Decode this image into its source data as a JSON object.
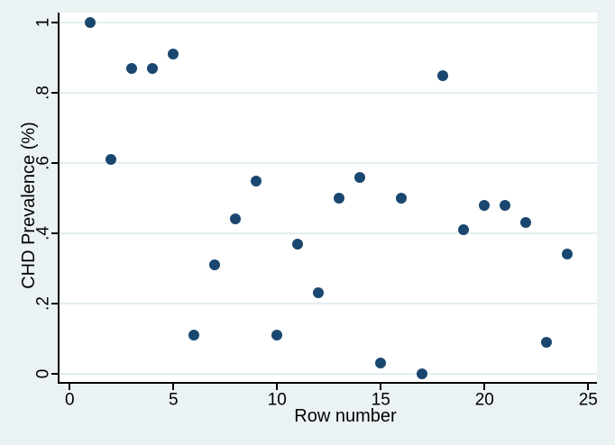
{
  "chart_data": {
    "type": "scatter",
    "title": "",
    "xlabel": "Row number",
    "ylabel": "CHD Prevalence (%)",
    "x": [
      1,
      2,
      3,
      4,
      5,
      6,
      7,
      8,
      9,
      10,
      11,
      12,
      13,
      14,
      15,
      16,
      17,
      18,
      19,
      20,
      21,
      22,
      23,
      24
    ],
    "y": [
      1.0,
      0.61,
      0.87,
      0.87,
      0.91,
      0.11,
      0.31,
      0.44,
      0.55,
      0.11,
      0.37,
      0.23,
      0.5,
      0.56,
      0.03,
      0.5,
      0.0,
      0.85,
      0.41,
      0.48,
      0.48,
      0.43,
      0.09,
      0.34
    ],
    "xticks": [
      0,
      5,
      10,
      15,
      20,
      25
    ],
    "xtick_labels": [
      "0",
      "5",
      "10",
      "15",
      "20",
      "25"
    ],
    "yticks": [
      0,
      0.2,
      0.4,
      0.6,
      0.8,
      1
    ],
    "ytick_labels": [
      "0",
      ".2",
      ".4",
      ".6",
      ".8",
      "1"
    ],
    "xlim": [
      -0.5,
      25.4
    ],
    "ylim": [
      -0.03,
      1.03
    ],
    "grid": "horizontal-only",
    "legend": "none",
    "colors": {
      "marker": "#1a476f",
      "background": "#eaf2f3",
      "plot_background": "#ffffff",
      "gridline": "#e3eef0",
      "axis": "#000000",
      "text": "#000000"
    }
  }
}
